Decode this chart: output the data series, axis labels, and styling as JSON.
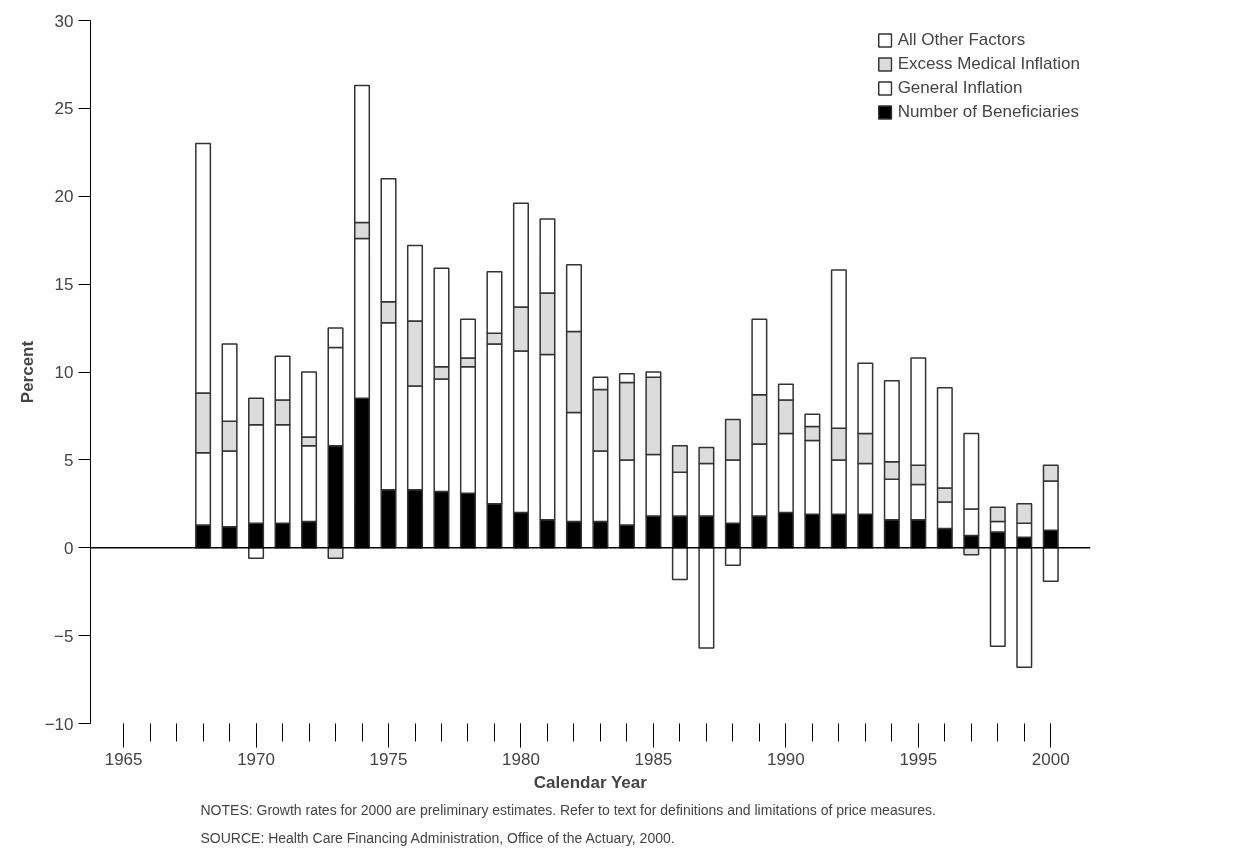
{
  "chart_data": {
    "type": "bar",
    "stacked": true,
    "xlabel": "Calendar Year",
    "ylabel": "Percent",
    "x": [
      1968,
      1969,
      1970,
      1971,
      1972,
      1973,
      1974,
      1975,
      1976,
      1977,
      1978,
      1979,
      1980,
      1981,
      1982,
      1983,
      1984,
      1985,
      1986,
      1987,
      1988,
      1989,
      1990,
      1991,
      1992,
      1993,
      1994,
      1995,
      1996,
      1997,
      1998,
      1999,
      2000
    ],
    "series": [
      {
        "name": "Number of Beneficiaries",
        "color": "#000000",
        "values": [
          1.3,
          1.2,
          1.4,
          1.4,
          1.5,
          5.8,
          8.5,
          3.3,
          3.3,
          3.2,
          3.1,
          2.5,
          2.0,
          1.6,
          1.5,
          1.5,
          1.3,
          1.8,
          1.8,
          1.8,
          1.4,
          1.8,
          2.0,
          1.9,
          1.9,
          1.9,
          1.6,
          1.6,
          1.1,
          0.7,
          0.9,
          0.6,
          1.0
        ]
      },
      {
        "name": "General Inflation",
        "color": "#ffffff",
        "values": [
          4.1,
          4.3,
          5.6,
          5.6,
          4.3,
          5.6,
          9.1,
          9.5,
          5.9,
          6.4,
          7.2,
          9.1,
          9.2,
          9.4,
          6.2,
          4.0,
          3.7,
          3.5,
          2.5,
          3.0,
          3.6,
          4.1,
          4.5,
          4.2,
          3.1,
          2.9,
          2.3,
          2.0,
          1.5,
          1.5,
          0.6,
          0.8,
          2.8
        ]
      },
      {
        "name": "Excess Medical Inflation",
        "color": "#dcdcdc",
        "values": [
          3.4,
          1.7,
          1.5,
          1.4,
          0.5,
          -0.6,
          0.9,
          1.2,
          3.7,
          0.7,
          0.5,
          0.6,
          2.5,
          3.5,
          4.6,
          3.5,
          4.4,
          4.4,
          1.5,
          0.9,
          2.3,
          2.8,
          1.9,
          0.8,
          1.8,
          1.7,
          1.0,
          1.1,
          0.8,
          -0.4,
          0.8,
          1.1,
          0.9
        ]
      },
      {
        "name": "All Other Factors",
        "color": "#ffffff",
        "values": [
          14.2,
          4.4,
          -0.6,
          2.5,
          3.7,
          1.1,
          7.8,
          7.0,
          4.3,
          5.6,
          2.2,
          3.5,
          5.9,
          4.2,
          3.8,
          0.7,
          0.5,
          0.3,
          -1.8,
          -5.7,
          -1.0,
          4.3,
          0.9,
          0.7,
          9.0,
          4.0,
          4.6,
          6.1,
          5.7,
          4.3,
          -5.6,
          -6.8,
          -1.9
        ]
      }
    ],
    "xlim": [
      1963.75,
      2001.5
    ],
    "ylim": [
      -10,
      30
    ],
    "xticks": [
      1965,
      1970,
      1975,
      1980,
      1985,
      1990,
      1995,
      2000
    ],
    "yticks": [
      -10,
      -5,
      0,
      5,
      10,
      15,
      20,
      25,
      30
    ],
    "ref_lines": [
      {
        "axis": "y",
        "value": 0
      }
    ],
    "grid": false,
    "legend": "top right",
    "annotations": [
      "NOTES: Growth rates for 2000 are preliminary estimates. Refer to text for definitions and limitations of price measures.",
      "SOURCE: Health Care Financing Administration, Office of the Actuary, 2000."
    ]
  }
}
